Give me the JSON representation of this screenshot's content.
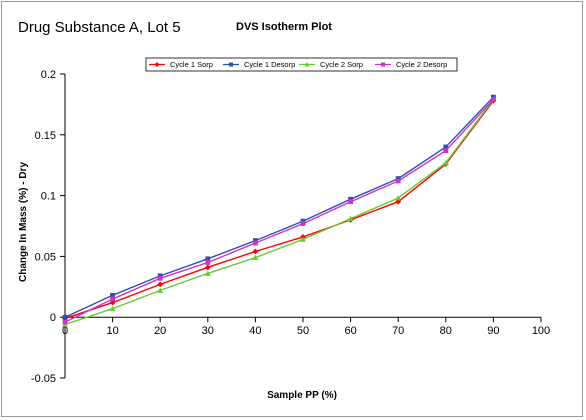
{
  "chart_data": {
    "type": "line",
    "subtitle": "Drug Substance A, Lot 5",
    "title": "DVS Isotherm Plot",
    "xlabel": "Sample PP (%)",
    "ylabel": "Change In Mass (%) - Dry",
    "xlim": [
      0,
      100
    ],
    "ylim": [
      -0.05,
      0.2
    ],
    "x_ticks": [
      0,
      10,
      20,
      30,
      40,
      50,
      60,
      70,
      80,
      90,
      100
    ],
    "y_ticks": [
      -0.05,
      0,
      0.05,
      0.1,
      0.15,
      0.2
    ],
    "y_tick_labels": [
      "-0.05",
      "0",
      "0.05",
      "0.1",
      "0.15",
      "0.2"
    ],
    "grid": false,
    "legend_position": "top-center",
    "series": [
      {
        "name": "Cycle 1 Sorp",
        "color": "#ff0000",
        "marker": "diamond",
        "x": [
          0,
          10,
          20,
          30,
          40,
          50,
          60,
          70,
          80,
          90
        ],
        "y": [
          -0.001,
          0.012,
          0.027,
          0.041,
          0.054,
          0.066,
          0.08,
          0.095,
          0.126,
          0.178
        ]
      },
      {
        "name": "Cycle 1 Desorp",
        "color": "#3050b0",
        "marker": "square",
        "x": [
          0,
          10,
          20,
          30,
          40,
          50,
          60,
          70,
          80,
          90
        ],
        "y": [
          0.0,
          0.018,
          0.034,
          0.048,
          0.063,
          0.079,
          0.097,
          0.114,
          0.14,
          0.181
        ]
      },
      {
        "name": "Cycle 2 Sorp",
        "color": "#66cc33",
        "marker": "triangle",
        "x": [
          0,
          10,
          20,
          30,
          40,
          50,
          60,
          70,
          80,
          90
        ],
        "y": [
          -0.006,
          0.007,
          0.022,
          0.036,
          0.049,
          0.064,
          0.081,
          0.098,
          0.127,
          0.179
        ]
      },
      {
        "name": "Cycle 2 Desorp",
        "color": "#cc33cc",
        "marker": "square",
        "x": [
          0,
          10,
          20,
          30,
          40,
          50,
          60,
          70,
          80,
          90
        ],
        "y": [
          -0.004,
          0.015,
          0.032,
          0.045,
          0.061,
          0.077,
          0.095,
          0.112,
          0.137,
          0.179
        ]
      }
    ]
  }
}
